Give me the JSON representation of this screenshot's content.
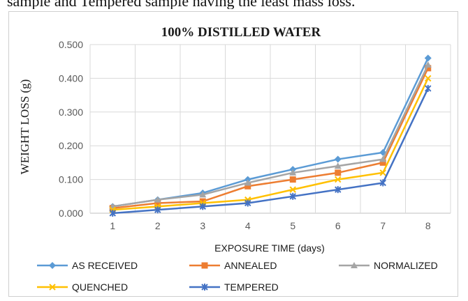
{
  "caption": "sample and Tempered sample having the least mass loss.",
  "chart_data": {
    "type": "line",
    "title": "100% DISTILLED WATER",
    "xlabel": "EXPOSURE TIME (days)",
    "ylabel": "WEIGHT LOSS (g)",
    "x": [
      1,
      2,
      3,
      4,
      5,
      6,
      7,
      8
    ],
    "ylim": [
      0,
      0.5
    ],
    "yticks": [
      "0.000",
      "0.100",
      "0.200",
      "0.300",
      "0.400",
      "0.500"
    ],
    "grid": true,
    "legend_position": "bottom",
    "series": [
      {
        "name": "AS RECEIVED",
        "color": "#5b9bd5",
        "marker": "diamond",
        "values": [
          0.02,
          0.04,
          0.06,
          0.1,
          0.13,
          0.16,
          0.18,
          0.46
        ]
      },
      {
        "name": "ANNEALED",
        "color": "#ed7d31",
        "marker": "square",
        "values": [
          0.015,
          0.03,
          0.035,
          0.08,
          0.1,
          0.12,
          0.15,
          0.43
        ]
      },
      {
        "name": "NORMALIZED",
        "color": "#a5a5a5",
        "marker": "triangle",
        "values": [
          0.02,
          0.04,
          0.055,
          0.09,
          0.12,
          0.14,
          0.16,
          0.44
        ]
      },
      {
        "name": "QUENCHED",
        "color": "#ffc000",
        "marker": "x",
        "values": [
          0.01,
          0.02,
          0.03,
          0.04,
          0.07,
          0.1,
          0.12,
          0.4
        ]
      },
      {
        "name": "TEMPERED",
        "color": "#4472c4",
        "marker": "star",
        "values": [
          0.0,
          0.01,
          0.02,
          0.03,
          0.05,
          0.07,
          0.09,
          0.37
        ]
      }
    ]
  }
}
